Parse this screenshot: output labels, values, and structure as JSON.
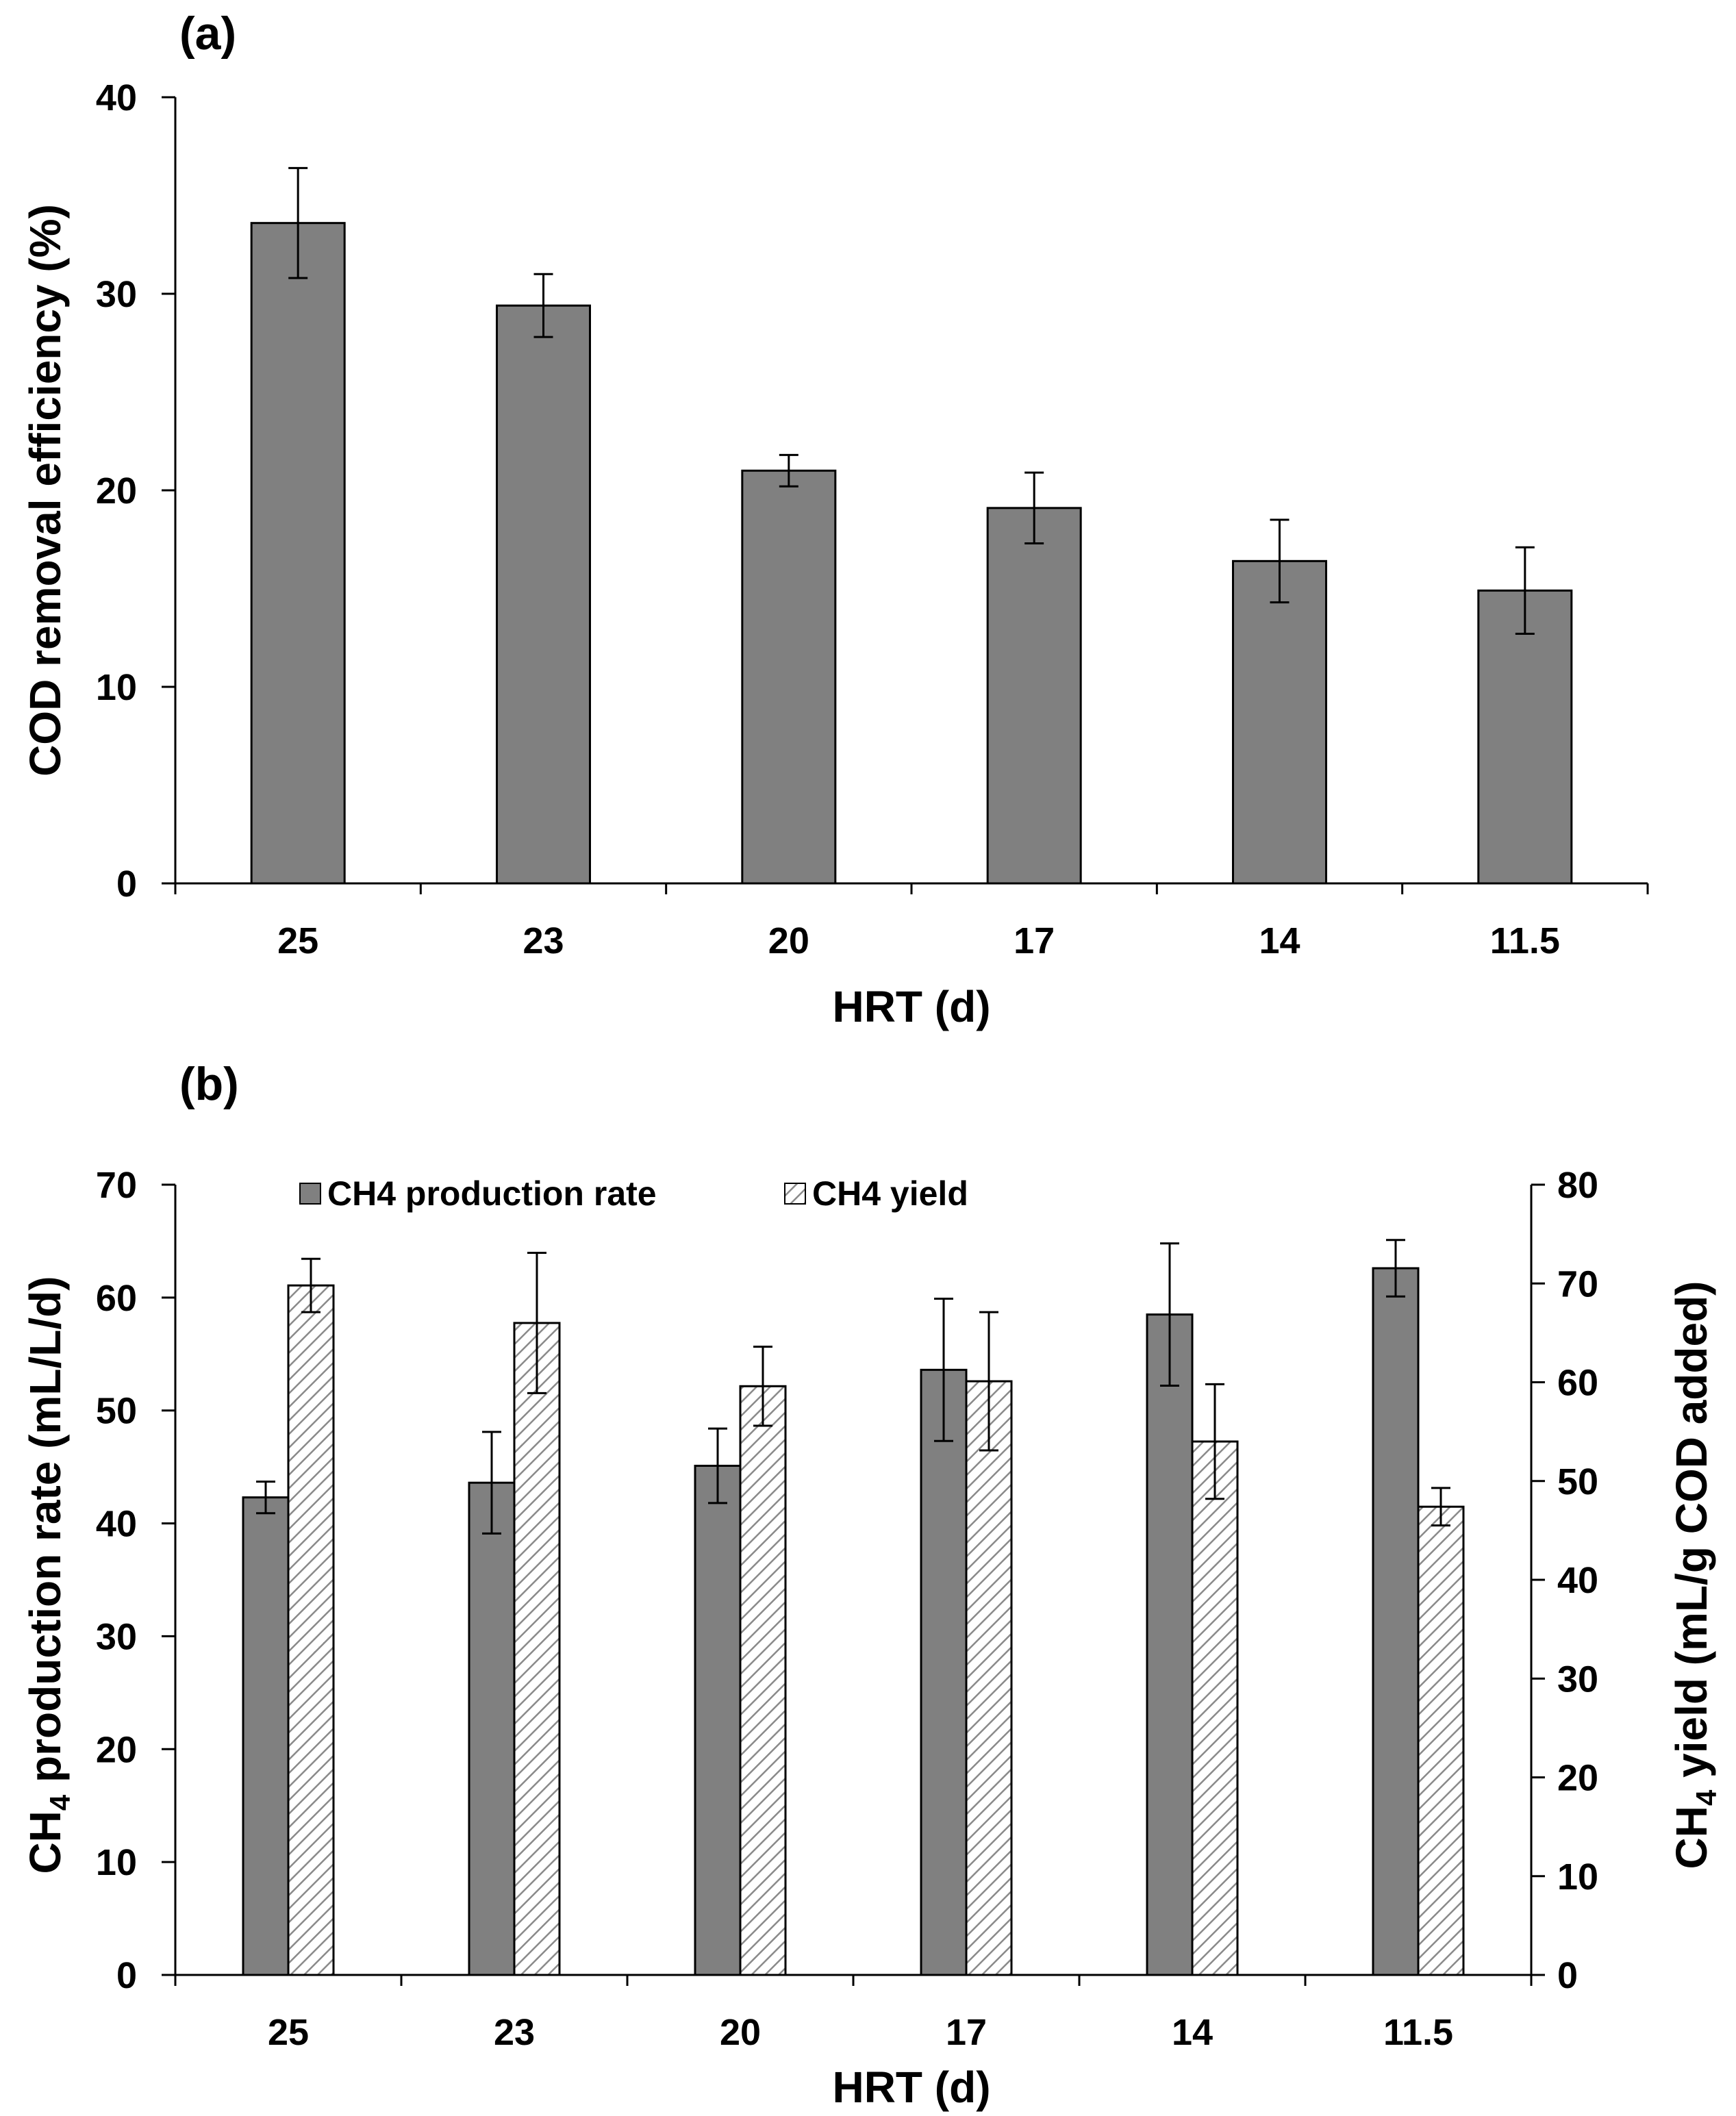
{
  "chart_data": [
    {
      "type": "bar",
      "panel_label": "(a)",
      "title": "",
      "xlabel": "HRT (d)",
      "ylabel": "COD removal efficiency (%)",
      "ylim": [
        0,
        40
      ],
      "yticks": [
        0,
        10,
        20,
        30,
        40
      ],
      "categories": [
        "25",
        "23",
        "20",
        "17",
        "14",
        "11.5"
      ],
      "series": [
        {
          "name": "COD removal efficiency",
          "color": "#808080",
          "values": [
            33.6,
            29.4,
            21.0,
            19.1,
            16.4,
            14.9
          ],
          "errors": [
            2.8,
            1.6,
            0.8,
            1.8,
            2.1,
            2.2
          ]
        }
      ]
    },
    {
      "type": "bar",
      "panel_label": "(b)",
      "title": "",
      "xlabel": "HRT (d)",
      "ylabel_prefix": "CH",
      "ylabel_sub": "4",
      "ylabel_suffix": " production rate (mL/L/d)",
      "y2label_prefix": "CH",
      "y2label_sub": "4",
      "y2label_suffix": " yield (mL/g COD added)",
      "ylim": [
        0,
        70
      ],
      "yticks": [
        0,
        10,
        20,
        30,
        40,
        50,
        60,
        70
      ],
      "y2lim": [
        0,
        80
      ],
      "y2ticks": [
        0,
        10,
        20,
        30,
        40,
        50,
        60,
        70,
        80
      ],
      "legend_position": "top-left",
      "categories": [
        "25",
        "23",
        "20",
        "17",
        "14",
        "11.5"
      ],
      "series": [
        {
          "name": "CH4 production rate",
          "axis": "left",
          "fill": "solid",
          "color": "#808080",
          "values": [
            42.3,
            43.6,
            45.1,
            53.6,
            58.5,
            62.6
          ],
          "errors": [
            1.4,
            4.5,
            3.3,
            6.3,
            6.3,
            2.5
          ]
        },
        {
          "name": "CH4 yield",
          "axis": "right",
          "fill": "hatched",
          "color": "#d9d9d9",
          "values": [
            69.8,
            66.0,
            59.6,
            60.1,
            54.0,
            47.4
          ],
          "errors": [
            2.7,
            7.1,
            4.0,
            7.0,
            5.8,
            1.9
          ]
        }
      ]
    }
  ]
}
